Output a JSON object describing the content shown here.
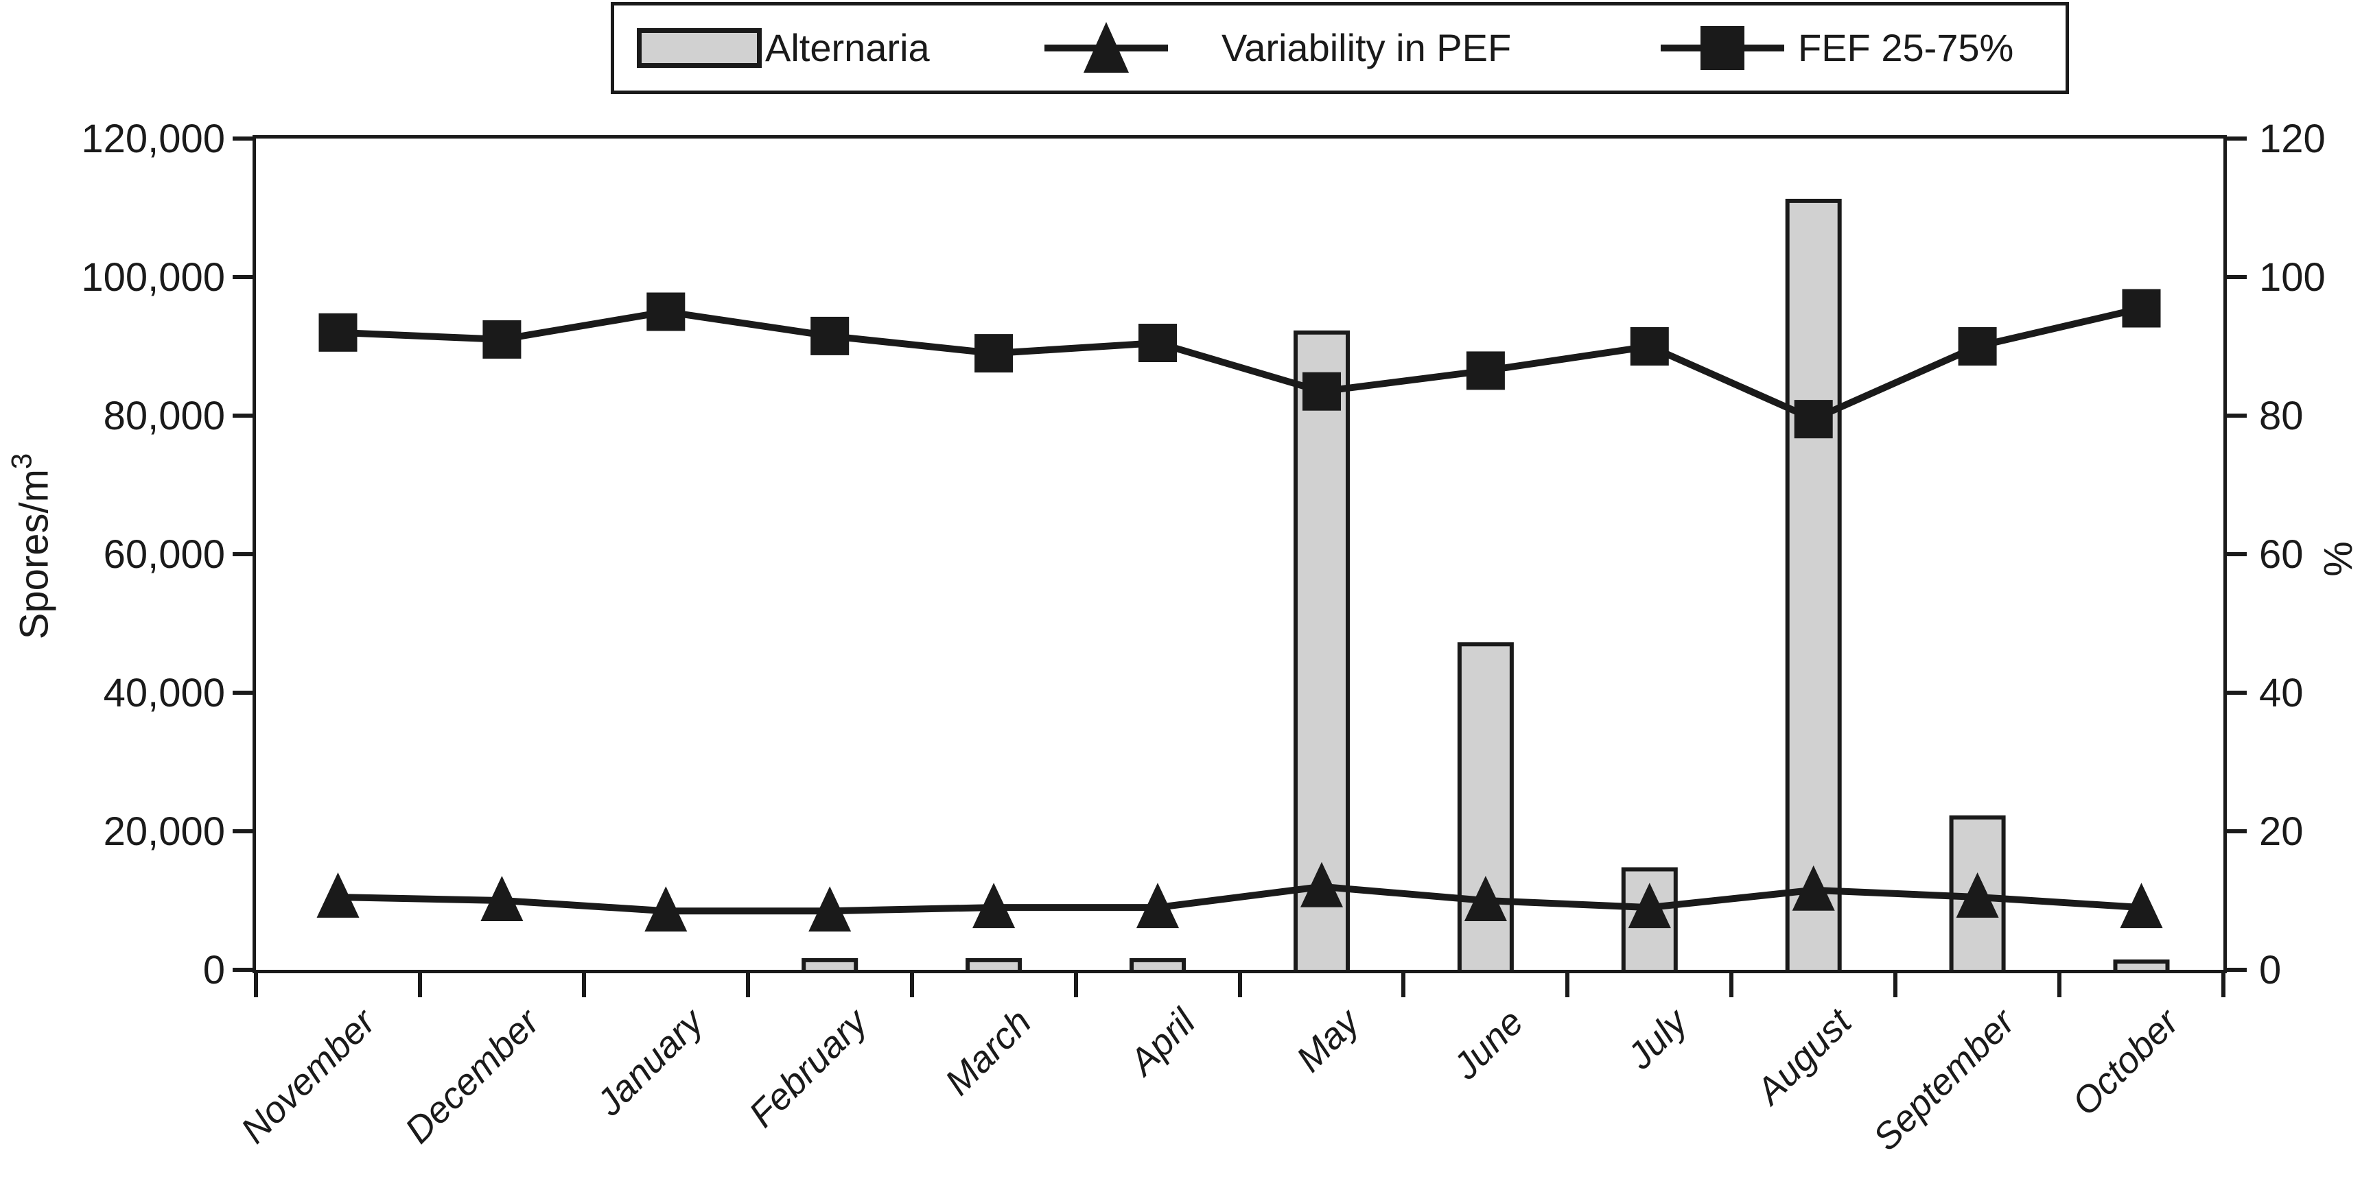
{
  "colors": {
    "background": "#ffffff",
    "ink": "#1a1a1a",
    "bar_fill": "#d1d1d1"
  },
  "legend": {
    "items": [
      {
        "label": "Alternaria",
        "marker": "bar-swatch"
      },
      {
        "label": "Variability in PEF",
        "marker": "triangle"
      },
      {
        "label": "FEF 25-75%",
        "marker": "square"
      }
    ]
  },
  "chart_data": {
    "type": "combo-bar-line",
    "grid": false,
    "legend_position": "top",
    "categories": [
      "November",
      "December",
      "January",
      "February",
      "March",
      "April",
      "May",
      "June",
      "July",
      "August",
      "September",
      "October"
    ],
    "series": [
      {
        "name": "Alternaria",
        "type": "bar",
        "axis": "left",
        "fill": "#d1d1d1",
        "stroke": "#1a1a1a",
        "values": [
          0,
          0,
          0,
          1400,
          1400,
          1400,
          92000,
          47000,
          14500,
          111000,
          22000,
          1200
        ]
      },
      {
        "name": "Variability in PEF",
        "type": "line",
        "marker": "triangle",
        "axis": "right",
        "color": "#1a1a1a",
        "values": [
          10.5,
          10,
          8.5,
          8.5,
          9,
          9,
          12,
          10,
          9,
          11.5,
          10.5,
          9
        ]
      },
      {
        "name": "FEF 25-75%",
        "type": "line",
        "marker": "square",
        "axis": "right",
        "color": "#1a1a1a",
        "values": [
          92,
          91,
          95,
          91.5,
          89,
          90.5,
          83.5,
          86.5,
          90,
          79.5,
          90,
          95.5
        ]
      }
    ],
    "y_left": {
      "label": "Spores/m",
      "label_sup": "3",
      "min": 0,
      "max": 120000,
      "tick_values": [
        0,
        20000,
        40000,
        60000,
        80000,
        100000,
        120000
      ],
      "tick_labels": [
        "0",
        "20,000",
        "40,000",
        "60,000",
        "80,000",
        "100,000",
        "120,000"
      ]
    },
    "y_right": {
      "label": "%",
      "min": 0,
      "max": 120,
      "tick_values": [
        0,
        20,
        40,
        60,
        80,
        100,
        120
      ],
      "tick_labels": [
        "0",
        "20",
        "40",
        "60",
        "80",
        "100",
        "120"
      ]
    }
  }
}
